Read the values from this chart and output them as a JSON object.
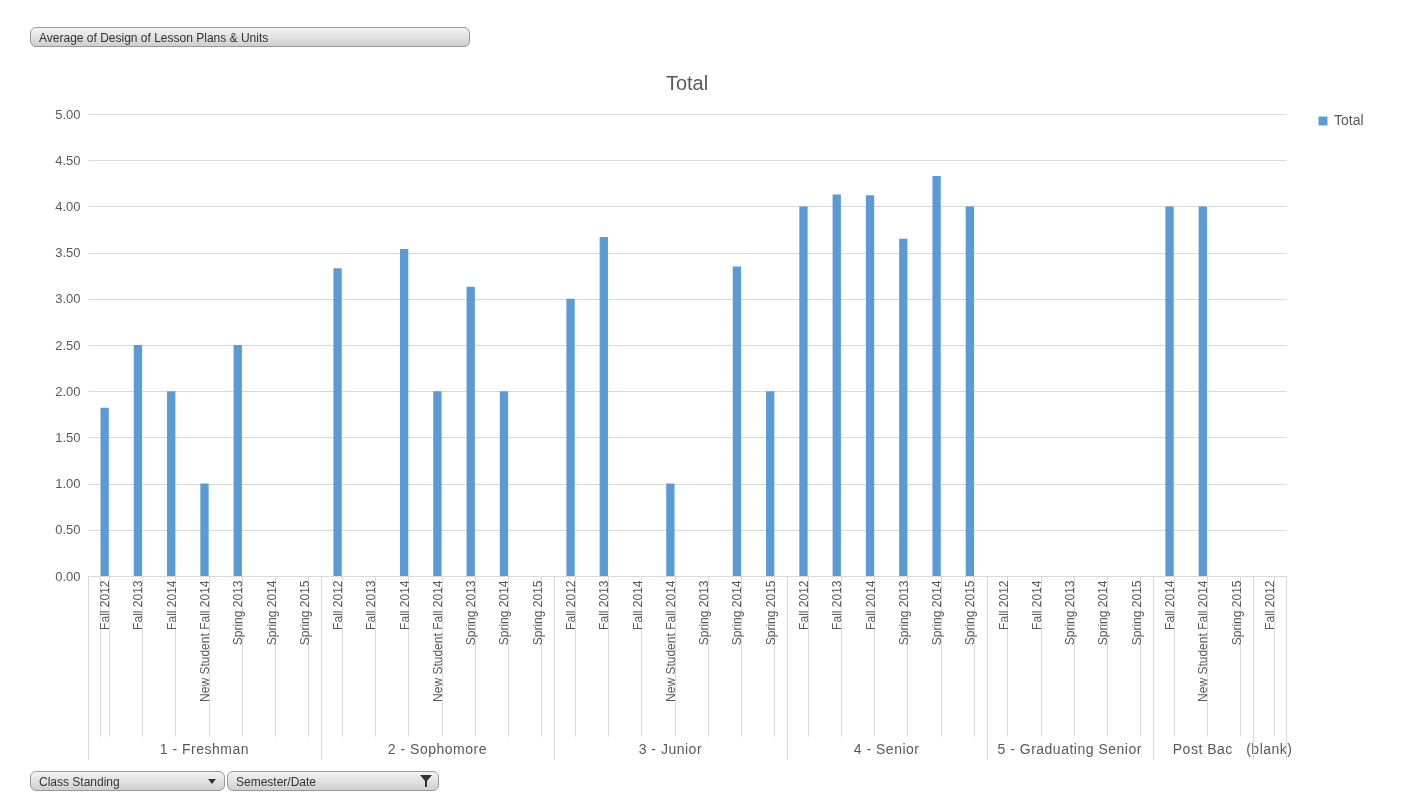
{
  "chart_data": {
    "type": "bar",
    "title": "Total",
    "categories": [
      "Fall 2012",
      "Fall 2013",
      "Fall 2014",
      "New Student Fall 2014",
      "Spring 2013",
      "Spring 2014",
      "Spring 2015",
      "Fall 2012",
      "Fall 2013",
      "Fall 2014",
      "New Student Fall 2014",
      "Spring 2013",
      "Spring 2014",
      "Spring 2015",
      "Fall 2012",
      "Fall 2013",
      "Fall 2014",
      "New Student Fall 2014",
      "Spring 2013",
      "Spring 2014",
      "Spring 2015",
      "Fall 2012",
      "Fall 2013",
      "Fall 2014",
      "Spring 2013",
      "Spring 2014",
      "Spring 2015",
      "Fall 2012",
      "Fall 2014",
      "Spring 2013",
      "Spring 2014",
      "Spring 2015",
      "Fall 2014",
      "New Student Fall 2014",
      "Spring 2015",
      "Fall 2012"
    ],
    "series": [
      {
        "name": "Total",
        "color": "#5b9bd5",
        "values": [
          1.82,
          2.5,
          2.0,
          1.0,
          2.5,
          null,
          null,
          3.33,
          null,
          3.54,
          2.0,
          3.13,
          2.0,
          null,
          3.0,
          3.67,
          null,
          1.0,
          null,
          3.35,
          2.0,
          4.0,
          4.13,
          4.12,
          3.65,
          4.33,
          4.0,
          null,
          null,
          null,
          null,
          null,
          4.0,
          4.0,
          null,
          null
        ]
      }
    ],
    "ylim": [
      0,
      5
    ],
    "yticks": [
      {
        "value": 0,
        "label": "0.00"
      },
      {
        "value": 0.5,
        "label": "0.50"
      },
      {
        "value": 1,
        "label": "1.00"
      },
      {
        "value": 1.5,
        "label": "1.50"
      },
      {
        "value": 2,
        "label": "2.00"
      },
      {
        "value": 2.5,
        "label": "2.50"
      },
      {
        "value": 3,
        "label": "3.00"
      },
      {
        "value": 3.5,
        "label": "3.50"
      },
      {
        "value": 4,
        "label": "4.00"
      },
      {
        "value": 4.5,
        "label": "4.50"
      },
      {
        "value": 5,
        "label": "5.00"
      }
    ],
    "grid": "y",
    "legend": "right",
    "annotations": [
      "1 - Freshman",
      "2 - Sophomore",
      "3 - Junior",
      "4 - Senior",
      "5 - Graduating Senior",
      "Post Bac",
      "(blank)",
      "Average of Design of Lesson Plans & Units",
      "Class Standing",
      "Semester/Date"
    ]
  }
}
